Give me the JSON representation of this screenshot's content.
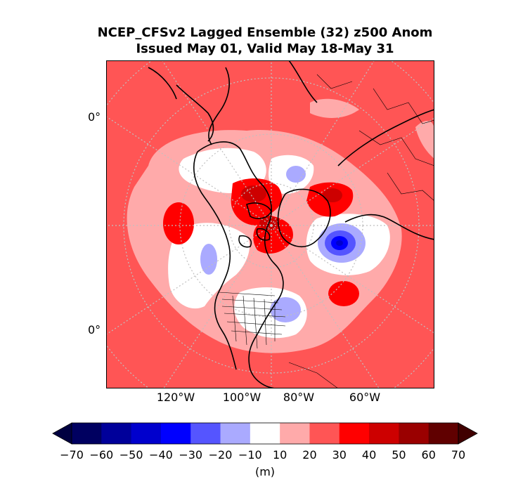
{
  "title": {
    "line1": "NCEP_CFSv2 Lagged Ensemble (32) z500 Anom",
    "line2": "Issued May 01, Valid May 18-May 31"
  },
  "map": {
    "projection": "north-polar-stereographic",
    "latitude_labels": [
      "0°",
      "0°"
    ],
    "longitude_labels": [
      "120°W",
      "100°W",
      "80°W",
      "60°W"
    ],
    "background_anomaly": "10 to 20 m (positive)",
    "coastlines": true,
    "country_borders": true,
    "us_state_borders": true,
    "graticule": "dotted"
  },
  "colorbar": {
    "levels": [
      "−70",
      "−60",
      "−50",
      "−40",
      "−30",
      "−20",
      "−10",
      "10",
      "20",
      "30",
      "40",
      "50",
      "60",
      "70"
    ],
    "colors": [
      "#000060",
      "#00009a",
      "#0000cd",
      "#0000ff",
      "#5555ff",
      "#aaaaff",
      "#ffffff",
      "#ffaaaa",
      "#ff5555",
      "#ff0000",
      "#cd0000",
      "#9a0000",
      "#600000"
    ],
    "extend": "both",
    "under_color": "#000040",
    "over_color": "#400000",
    "unit_label": "(m)"
  }
}
